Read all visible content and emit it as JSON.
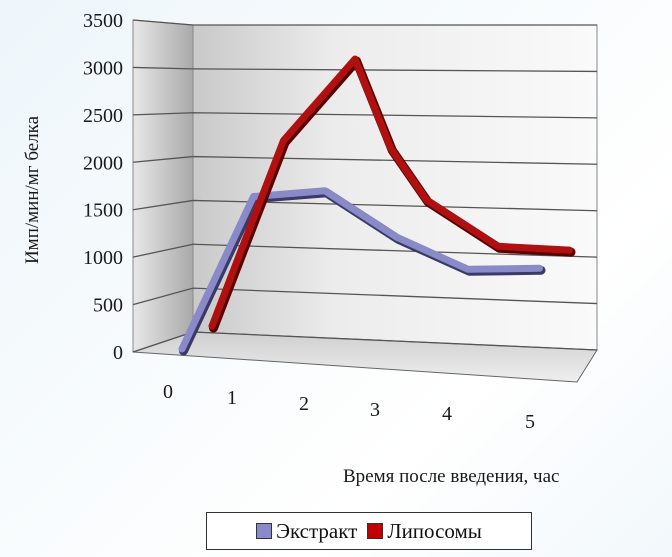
{
  "chart_data": {
    "type": "line",
    "style": "3d-line",
    "x": [
      0,
      1,
      2,
      3,
      4,
      5
    ],
    "categories": [
      "0",
      "1",
      "2",
      "3",
      "4",
      "5"
    ],
    "ylabel": "Имп/мин/мг белка",
    "xlabel": "Время после введения, час",
    "ylim": [
      0,
      3500
    ],
    "yticks": [
      0,
      500,
      1000,
      1500,
      2000,
      2500,
      3000,
      3500
    ],
    "grid": true,
    "legend_position": "bottom",
    "series": [
      {
        "name": "Экстракт",
        "color": "#8a8ac8",
        "x": [
          0,
          1,
          2,
          3,
          4,
          5
        ],
        "values": [
          0,
          1600,
          1650,
          1150,
          800,
          800
        ]
      },
      {
        "name": "Липосомы",
        "color": "#b01010",
        "x": [
          0,
          1,
          2,
          2.5,
          3,
          4,
          5
        ],
        "values": [
          200,
          2150,
          3000,
          2050,
          1500,
          1000,
          950
        ]
      }
    ]
  }
}
